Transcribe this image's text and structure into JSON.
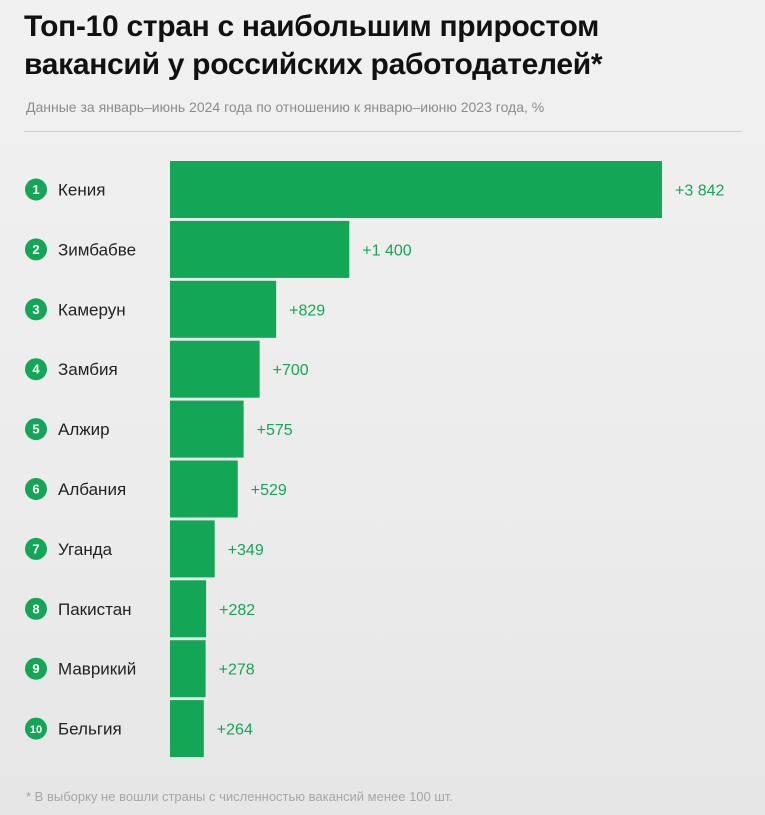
{
  "header": {
    "title_line1": "Топ-10 стран с наибольшим приростом",
    "title_line2": "вакансий у российских работодателей*",
    "subtitle": "Данные за январь–июнь 2024 года по отношению к январю–июню 2023 года, %"
  },
  "footnote": "* В выборку не вошли страны с численностью вакансий менее 100 шт.",
  "colors": {
    "bar": "#13a657",
    "badge": "#13a657",
    "value_label": "#13a657",
    "country_label": "#222222"
  },
  "chart_data": {
    "type": "bar",
    "orientation": "horizontal",
    "unit": "%",
    "categories": [
      "Кения",
      "Зимбабве",
      "Камерун",
      "Замбия",
      "Алжир",
      "Албания",
      "Уганда",
      "Пакистан",
      "Маврикий",
      "Бельгия"
    ],
    "ranks": [
      "1",
      "2",
      "3",
      "4",
      "5",
      "6",
      "7",
      "8",
      "9",
      "10"
    ],
    "values": [
      3842,
      1400,
      829,
      700,
      575,
      529,
      349,
      282,
      278,
      264
    ],
    "value_labels": [
      "+3 842",
      "+1 400",
      "+829",
      "+700",
      "+575",
      "+529",
      "+349",
      "+282",
      "+278",
      "+264"
    ],
    "xlim": [
      0,
      3842
    ],
    "grid": false,
    "legend": "none"
  }
}
